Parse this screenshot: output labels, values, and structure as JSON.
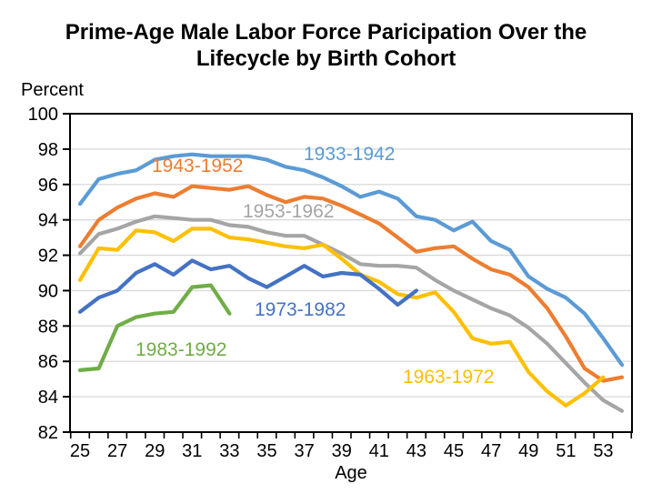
{
  "chart_data": {
    "type": "line",
    "title_line1": "Prime-Age Male Labor Force Paricipation Over the",
    "title_line2": "Lifecycle by Birth Cohort",
    "y_axis_label": "Percent",
    "x_axis_label": "Age",
    "ylim": [
      82,
      100
    ],
    "xlim": [
      25,
      54
    ],
    "yticks": [
      100,
      98,
      96,
      94,
      92,
      90,
      88,
      86,
      84,
      82
    ],
    "xticks": [
      25,
      27,
      29,
      31,
      33,
      35,
      37,
      39,
      41,
      43,
      45,
      47,
      49,
      51,
      53
    ],
    "grid": "horizontal",
    "gridline_color": "#d9d9d9",
    "axis_color": "#000000",
    "series": [
      {
        "name": "1933-1942",
        "color": "#5B9BD5",
        "start_age": 25,
        "values": [
          94.9,
          96.3,
          96.6,
          96.8,
          97.4,
          97.6,
          97.7,
          97.6,
          97.6,
          97.6,
          97.4,
          97.0,
          96.8,
          96.4,
          95.9,
          95.3,
          95.6,
          95.2,
          94.2,
          94.0,
          93.4,
          93.9,
          92.8,
          92.3,
          90.8,
          90.1,
          89.6,
          88.7,
          87.3,
          85.8
        ]
      },
      {
        "name": "1943-1952",
        "color": "#ED7D31",
        "start_age": 25,
        "values": [
          92.5,
          94.0,
          94.7,
          95.2,
          95.5,
          95.3,
          95.9,
          95.8,
          95.7,
          95.9,
          95.4,
          95.0,
          95.3,
          95.2,
          94.8,
          94.3,
          93.8,
          93.0,
          92.2,
          92.4,
          92.5,
          91.8,
          91.2,
          90.9,
          90.2,
          89.0,
          87.4,
          85.6,
          84.9,
          85.1
        ]
      },
      {
        "name": "1953-1962",
        "color": "#A5A5A5",
        "start_age": 25,
        "values": [
          92.1,
          93.2,
          93.5,
          93.9,
          94.2,
          94.1,
          94.0,
          94.0,
          93.7,
          93.6,
          93.3,
          93.1,
          93.1,
          92.6,
          92.1,
          91.5,
          91.4,
          91.4,
          91.3,
          90.6,
          90.0,
          89.5,
          89.0,
          88.6,
          87.9,
          87.0,
          85.9,
          84.8,
          83.8,
          83.2
        ]
      },
      {
        "name": "1963-1972",
        "color": "#FFC000",
        "start_age": 25,
        "values": [
          90.6,
          92.4,
          92.3,
          93.4,
          93.3,
          92.8,
          93.5,
          93.5,
          93.0,
          92.9,
          92.7,
          92.5,
          92.4,
          92.6,
          91.8,
          90.9,
          90.5,
          89.8,
          89.6,
          89.9,
          88.8,
          87.3,
          87.0,
          87.1,
          85.4,
          84.3,
          83.5,
          84.2,
          85.1
        ]
      },
      {
        "name": "1973-1982",
        "color": "#4472C4",
        "start_age": 25,
        "values": [
          88.8,
          89.6,
          90.0,
          91.0,
          91.5,
          90.9,
          91.7,
          91.2,
          91.4,
          90.7,
          90.2,
          90.8,
          91.4,
          90.8,
          91.0,
          90.9,
          90.1,
          89.2,
          90.0
        ]
      },
      {
        "name": "1983-1992",
        "color": "#70AD47",
        "start_age": 25,
        "values": [
          85.5,
          85.6,
          88.0,
          88.5,
          88.7,
          88.8,
          90.2,
          90.3,
          88.7
        ]
      }
    ]
  }
}
